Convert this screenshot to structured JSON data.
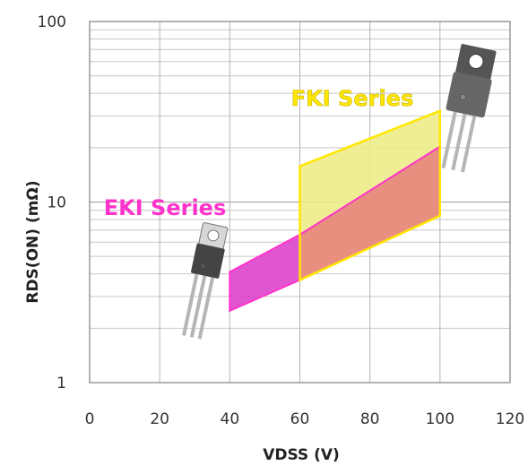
{
  "chart_data": {
    "type": "area",
    "title": "",
    "xlabel": "VDSS (V)",
    "ylabel": "RDS(ON) (mΩ)",
    "xlim": [
      0,
      120
    ],
    "ylim": [
      1,
      100
    ],
    "yscale": "log",
    "grid": true,
    "x_ticks": [
      "0",
      "20",
      "40",
      "60",
      "80",
      "100",
      "120"
    ],
    "y_ticks": [
      "1",
      "10",
      "100"
    ],
    "series": [
      {
        "name": "EKI Series",
        "color": "#ff33cc",
        "fill": "#dd44cc",
        "points": [
          [
            40,
            4.1
          ],
          [
            60,
            6.6
          ],
          [
            100,
            20.3
          ],
          [
            100,
            8.4
          ],
          [
            60,
            3.7
          ],
          [
            40,
            2.5
          ]
        ]
      },
      {
        "name": "FKI Series",
        "color": "#ffe600",
        "fill": "#eeec88",
        "points": [
          [
            60,
            15.8
          ],
          [
            100,
            32.0
          ],
          [
            100,
            8.4
          ],
          [
            60,
            3.7
          ]
        ]
      }
    ],
    "overlap_fill": "#e88f80",
    "decorations": [
      "transistor-package-icon",
      "transistor-package-icon"
    ]
  }
}
